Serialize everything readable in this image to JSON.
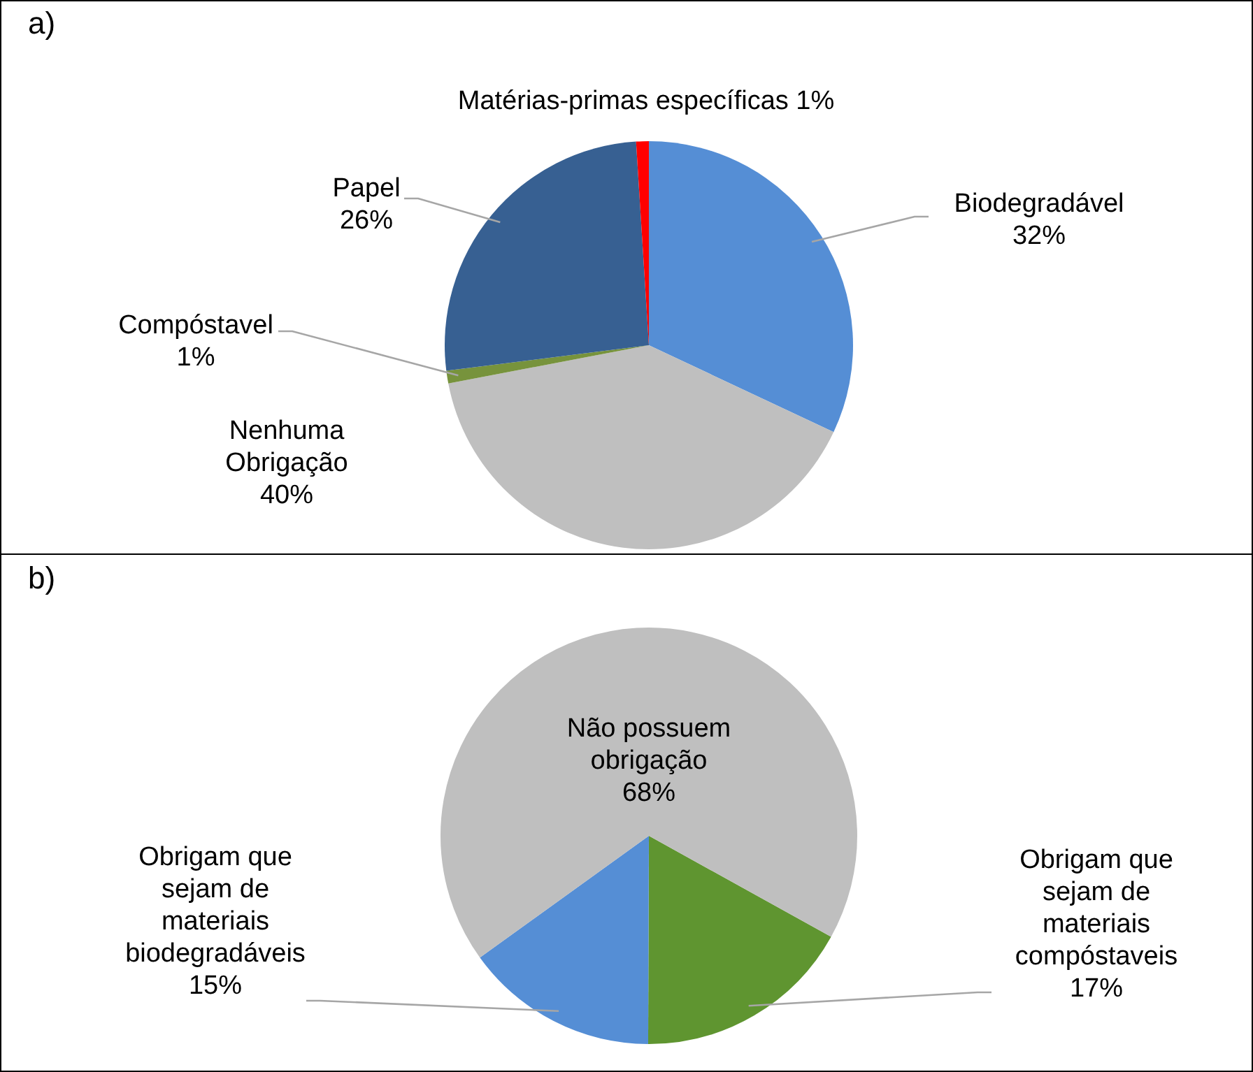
{
  "chart_data": [
    {
      "type": "pie",
      "title": "a)",
      "categories": [
        "Biodegradável",
        "Nenhuma Obrigação",
        "Compóstavel",
        "Papel",
        "Matérias-primas específicas"
      ],
      "values": [
        32,
        40,
        1,
        26,
        1
      ],
      "value_labels": [
        "32%",
        "40%",
        "1%",
        "26%",
        "1%"
      ],
      "colors": [
        "#558ed5",
        "#bfbfbf",
        "#77933c",
        "#376092",
        "#ff0000"
      ]
    },
    {
      "type": "pie",
      "title": "b)",
      "categories": [
        "Obrigam que sejam de materiais compóstaveis",
        "Obrigam que sejam de materiais biodegradáveis",
        "Não possuem obrigação"
      ],
      "values": [
        17,
        15,
        68
      ],
      "value_labels": [
        "17%",
        "15%",
        "68%"
      ],
      "colors": [
        "#5f9530",
        "#558ed5",
        "#bfbfbf"
      ]
    }
  ]
}
